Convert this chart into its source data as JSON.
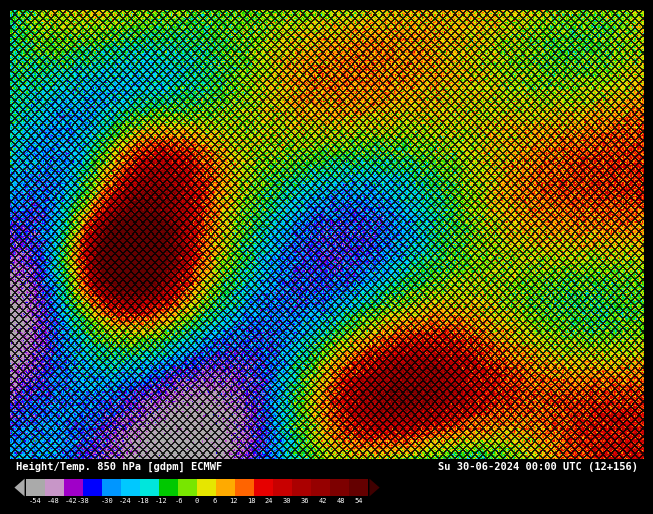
{
  "title_left": "Height/Temp. 850 hPa [gdpm] ECMWF",
  "title_right": "Su 30-06-2024 00:00 UTC (12+156)",
  "colorbar_ticks": [
    -54,
    -48,
    -42,
    -38,
    -30,
    -24,
    -18,
    -12,
    -6,
    0,
    6,
    12,
    18,
    24,
    30,
    36,
    42,
    48,
    54
  ],
  "colorbar_colors": [
    "#aaaaaa",
    "#c896c8",
    "#a000c8",
    "#0000ff",
    "#0096ff",
    "#00c8ff",
    "#00e6dc",
    "#00c800",
    "#78e600",
    "#e6e600",
    "#ffaa00",
    "#ff6400",
    "#e60000",
    "#c80000",
    "#aa0000",
    "#960000",
    "#7d0000",
    "#640000"
  ],
  "noise_seed": 42,
  "vmin": 12,
  "vmax": 36
}
